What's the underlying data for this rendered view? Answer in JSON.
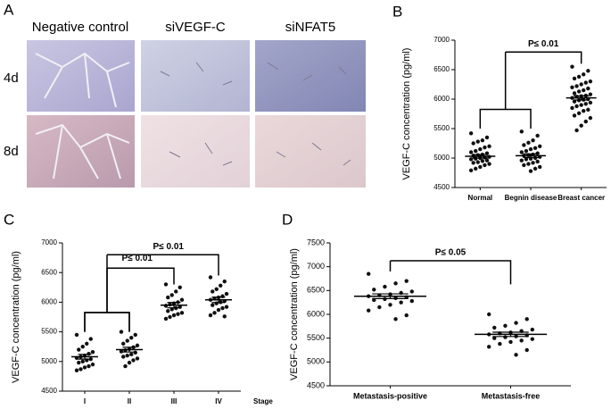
{
  "panel_a": {
    "label": "A",
    "columns": [
      "Negative control",
      "siVEGF-C",
      "siNFAT5"
    ],
    "rows": [
      "4d",
      "8d"
    ]
  },
  "chart_data": [
    {
      "type": "dot",
      "label": "B",
      "ylabel": "VEGF-C concentration (pg/ml)",
      "categories": [
        "Normal",
        "Begnin disease",
        "Breast cancer"
      ],
      "values": [
        [
          5420,
          5350,
          5300,
          5280,
          5250,
          5200,
          5180,
          5150,
          5120,
          5100,
          5080,
          5060,
          5050,
          5040,
          5020,
          5010,
          5000,
          4990,
          4980,
          4960,
          4950,
          4930,
          4920,
          4900,
          4880,
          4850,
          4820,
          4790
        ],
        [
          5450,
          5380,
          5300,
          5260,
          5220,
          5200,
          5170,
          5150,
          5120,
          5100,
          5080,
          5060,
          5050,
          5040,
          5020,
          5000,
          4990,
          4980,
          4960,
          4940,
          4920,
          4900,
          4880,
          4850,
          4820,
          4780
        ],
        [
          6550,
          6480,
          6420,
          6380,
          6350,
          6300,
          6280,
          6250,
          6220,
          6200,
          6180,
          6150,
          6130,
          6100,
          6080,
          6060,
          6050,
          6040,
          6020,
          6000,
          5990,
          5980,
          5960,
          5940,
          5920,
          5900,
          5880,
          5850,
          5820,
          5800,
          5760,
          5720,
          5680,
          5620,
          5550,
          5470
        ]
      ],
      "mean": [
        5030,
        5040,
        6020
      ],
      "sem": [
        30,
        30,
        35
      ],
      "ylim": [
        4500,
        7000
      ],
      "yticks": [
        4500,
        5000,
        5500,
        6000,
        6500,
        7000
      ],
      "annotations": [
        "P≤ 0.01"
      ]
    },
    {
      "type": "dot",
      "label": "C",
      "ylabel": "VEGF-C concentration (pg/ml)",
      "xlabel": "Stage",
      "categories": [
        "I",
        "II",
        "III",
        "IV"
      ],
      "values": [
        [
          5450,
          5380,
          5300,
          5250,
          5200,
          5160,
          5130,
          5100,
          5080,
          5060,
          5040,
          5020,
          5000,
          4980,
          4950,
          4920,
          4900,
          4870,
          4850
        ],
        [
          5500,
          5450,
          5400,
          5350,
          5300,
          5270,
          5240,
          5210,
          5190,
          5170,
          5150,
          5120,
          5100,
          5080,
          5050,
          5020,
          4980,
          4920
        ],
        [
          6300,
          6250,
          6180,
          6120,
          6080,
          6040,
          6000,
          5980,
          5960,
          5940,
          5920,
          5900,
          5880,
          5850,
          5820,
          5800,
          5780,
          5750,
          5720
        ],
        [
          6420,
          6350,
          6280,
          6220,
          6180,
          6140,
          6100,
          6080,
          6060,
          6040,
          6020,
          6000,
          5980,
          5950,
          5920,
          5900,
          5870,
          5820,
          5780,
          5760
        ]
      ],
      "mean": [
        5080,
        5200,
        5950,
        6040
      ],
      "sem": [
        40,
        40,
        45,
        45
      ],
      "ylim": [
        4500,
        7000
      ],
      "yticks": [
        4500,
        5000,
        5500,
        6000,
        6500,
        7000
      ],
      "annotations": [
        "P≤ 0.01",
        "P≤ 0.01"
      ]
    },
    {
      "type": "dot",
      "label": "D",
      "ylabel": "VEGF-C concentration (pg/ml)",
      "categories": [
        "Metastasis-positive",
        "Metastasis-free"
      ],
      "values": [
        [
          6850,
          6700,
          6650,
          6580,
          6520,
          6480,
          6450,
          6420,
          6400,
          6380,
          6360,
          6340,
          6320,
          6300,
          6280,
          6250,
          6200,
          6150,
          6080,
          5980,
          5900
        ],
        [
          6000,
          5900,
          5820,
          5760,
          5720,
          5680,
          5650,
          5620,
          5600,
          5580,
          5560,
          5540,
          5520,
          5500,
          5480,
          5450,
          5420,
          5380,
          5320,
          5250,
          5150
        ]
      ],
      "mean": [
        6380,
        5580
      ],
      "sem": [
        50,
        45
      ],
      "ylim": [
        4500,
        7500
      ],
      "yticks": [
        4500,
        5000,
        5500,
        6000,
        6500,
        7000,
        7500
      ],
      "annotations": [
        "P≤ 0.05"
      ]
    }
  ]
}
